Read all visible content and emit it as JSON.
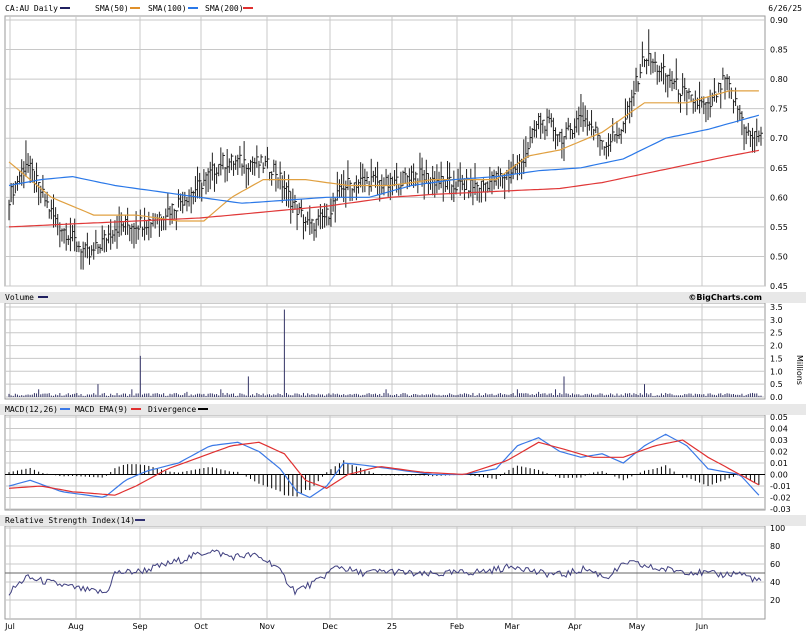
{
  "header": {
    "date": "6/26/25",
    "watermark": "©BigCharts.com"
  },
  "legends": {
    "price": [
      {
        "label": "CA:AU Daily",
        "color": "#202060"
      },
      {
        "label": "SMA(50)",
        "color": "#e0902a"
      },
      {
        "label": "SMA(100)",
        "color": "#e0902a"
      },
      {
        "label": "SMA(200)",
        "color": "#e03030"
      }
    ],
    "volume": [
      {
        "label": "Volume",
        "color": "#202060"
      }
    ],
    "macd": [
      {
        "label": "MACD(12,26)",
        "color": "#3a78e6"
      },
      {
        "label": "MACD EMA(9)",
        "color": "#e03030"
      },
      {
        "label": "Divergence",
        "color": "#000000"
      }
    ],
    "rsi": [
      {
        "label": "Relative Strength Index(14)",
        "color": "#303070"
      }
    ]
  },
  "volume_unit_label": "Millions",
  "colors": {
    "price_bar": "#222222",
    "sma50": "#e0a040",
    "sma100": "#2a78e8",
    "sma200": "#e03838",
    "grid": "#c8c8c8",
    "rsi": "#404080",
    "macd": "#3a78e6",
    "macd_signal": "#e03030",
    "volume": "#333366"
  },
  "chart_data": [
    {
      "type": "ohlc",
      "title": "CA:AU Daily",
      "x_labels": [
        "Jul",
        "Aug",
        "Sep",
        "Oct",
        "Nov",
        "Dec",
        "25",
        "Feb",
        "Mar",
        "Apr",
        "May",
        "Jun"
      ],
      "ylim": [
        0.45,
        0.9
      ],
      "y_ticks": [
        "0.90",
        "0.85",
        "0.80",
        "0.75",
        "0.70",
        "0.65",
        "0.60",
        "0.55",
        "0.50",
        "0.45"
      ],
      "close_anchors": [
        [
          0,
          0.6
        ],
        [
          8,
          0.66
        ],
        [
          22,
          0.56
        ],
        [
          38,
          0.5
        ],
        [
          50,
          0.55
        ],
        [
          66,
          0.56
        ],
        [
          76,
          0.58
        ],
        [
          90,
          0.62
        ],
        [
          100,
          0.66
        ],
        [
          115,
          0.66
        ],
        [
          125,
          0.65
        ],
        [
          134,
          0.59
        ],
        [
          142,
          0.55
        ],
        [
          150,
          0.57
        ],
        [
          158,
          0.62
        ],
        [
          170,
          0.63
        ],
        [
          180,
          0.62
        ],
        [
          190,
          0.64
        ],
        [
          200,
          0.63
        ],
        [
          210,
          0.62
        ],
        [
          222,
          0.62
        ],
        [
          236,
          0.64
        ],
        [
          242,
          0.66
        ],
        [
          250,
          0.73
        ],
        [
          256,
          0.72
        ],
        [
          262,
          0.7
        ],
        [
          270,
          0.74
        ],
        [
          282,
          0.69
        ],
        [
          290,
          0.72
        ],
        [
          300,
          0.84
        ],
        [
          306,
          0.82
        ],
        [
          312,
          0.8
        ],
        [
          320,
          0.77
        ],
        [
          330,
          0.75
        ],
        [
          338,
          0.8
        ],
        [
          344,
          0.75
        ],
        [
          350,
          0.7
        ],
        [
          355,
          0.71
        ]
      ],
      "sma50_anchors": [
        [
          0,
          0.66
        ],
        [
          20,
          0.6
        ],
        [
          40,
          0.57
        ],
        [
          60,
          0.57
        ],
        [
          80,
          0.56
        ],
        [
          92,
          0.56
        ],
        [
          105,
          0.6
        ],
        [
          120,
          0.63
        ],
        [
          140,
          0.63
        ],
        [
          160,
          0.62
        ],
        [
          180,
          0.62
        ],
        [
          200,
          0.63
        ],
        [
          215,
          0.63
        ],
        [
          230,
          0.63
        ],
        [
          245,
          0.67
        ],
        [
          260,
          0.68
        ],
        [
          280,
          0.71
        ],
        [
          300,
          0.76
        ],
        [
          320,
          0.76
        ],
        [
          340,
          0.78
        ],
        [
          355,
          0.78
        ]
      ],
      "sma100_anchors": [
        [
          0,
          0.62
        ],
        [
          15,
          0.63
        ],
        [
          30,
          0.635
        ],
        [
          50,
          0.62
        ],
        [
          70,
          0.61
        ],
        [
          90,
          0.6
        ],
        [
          110,
          0.59
        ],
        [
          130,
          0.595
        ],
        [
          150,
          0.6
        ],
        [
          170,
          0.6
        ],
        [
          190,
          0.62
        ],
        [
          210,
          0.63
        ],
        [
          230,
          0.635
        ],
        [
          250,
          0.645
        ],
        [
          270,
          0.65
        ],
        [
          290,
          0.665
        ],
        [
          310,
          0.7
        ],
        [
          330,
          0.715
        ],
        [
          355,
          0.74
        ]
      ],
      "sma200_anchors": [
        [
          0,
          0.55
        ],
        [
          30,
          0.555
        ],
        [
          60,
          0.56
        ],
        [
          90,
          0.565
        ],
        [
          120,
          0.575
        ],
        [
          150,
          0.585
        ],
        [
          180,
          0.6
        ],
        [
          200,
          0.605
        ],
        [
          230,
          0.61
        ],
        [
          260,
          0.615
        ],
        [
          280,
          0.625
        ],
        [
          300,
          0.64
        ],
        [
          320,
          0.655
        ],
        [
          340,
          0.67
        ],
        [
          355,
          0.68
        ]
      ]
    },
    {
      "type": "bar",
      "title": "Volume",
      "ylabel": "Millions",
      "ylim": [
        0,
        3.5
      ],
      "y_ticks": [
        "3.5",
        "3.0",
        "2.5",
        "2.0",
        "1.5",
        "1.0",
        "0.5",
        "0.0"
      ],
      "spikes": [
        [
          14,
          0.3
        ],
        [
          42,
          0.5
        ],
        [
          58,
          0.3
        ],
        [
          62,
          1.6
        ],
        [
          84,
          0.2
        ],
        [
          100,
          0.3
        ],
        [
          113,
          0.8
        ],
        [
          130,
          3.4
        ],
        [
          178,
          0.3
        ],
        [
          240,
          0.3
        ],
        [
          250,
          0.2
        ],
        [
          258,
          0.3
        ],
        [
          262,
          0.8
        ],
        [
          300,
          0.5
        ]
      ]
    },
    {
      "type": "line",
      "title": "MACD(12,26)",
      "ylim": [
        -0.03,
        0.05
      ],
      "y_ticks": [
        "0.05",
        "0.04",
        "0.03",
        "0.02",
        "0.01",
        "0.00",
        "-0.01",
        "-0.02",
        "-0.03"
      ],
      "macd_anchors": [
        [
          0,
          -0.01
        ],
        [
          10,
          -0.005
        ],
        [
          25,
          -0.015
        ],
        [
          45,
          -0.02
        ],
        [
          55,
          -0.005
        ],
        [
          65,
          0.003
        ],
        [
          80,
          0.01
        ],
        [
          95,
          0.025
        ],
        [
          108,
          0.028
        ],
        [
          118,
          0.02
        ],
        [
          128,
          0.005
        ],
        [
          136,
          -0.015
        ],
        [
          142,
          -0.02
        ],
        [
          150,
          -0.01
        ],
        [
          158,
          0.01
        ],
        [
          168,
          0.008
        ],
        [
          180,
          0.005
        ],
        [
          200,
          0.0
        ],
        [
          215,
          0.0
        ],
        [
          230,
          0.005
        ],
        [
          240,
          0.025
        ],
        [
          250,
          0.032
        ],
        [
          260,
          0.02
        ],
        [
          270,
          0.015
        ],
        [
          280,
          0.018
        ],
        [
          290,
          0.01
        ],
        [
          300,
          0.025
        ],
        [
          310,
          0.035
        ],
        [
          320,
          0.025
        ],
        [
          330,
          0.005
        ],
        [
          345,
          0.0
        ],
        [
          355,
          -0.02
        ]
      ],
      "signal_anchors": [
        [
          0,
          -0.012
        ],
        [
          15,
          -0.01
        ],
        [
          30,
          -0.015
        ],
        [
          50,
          -0.018
        ],
        [
          60,
          -0.01
        ],
        [
          75,
          0.005
        ],
        [
          90,
          0.015
        ],
        [
          105,
          0.025
        ],
        [
          118,
          0.028
        ],
        [
          130,
          0.018
        ],
        [
          140,
          -0.005
        ],
        [
          150,
          -0.012
        ],
        [
          160,
          0.0
        ],
        [
          175,
          0.007
        ],
        [
          195,
          0.002
        ],
        [
          215,
          0.0
        ],
        [
          235,
          0.012
        ],
        [
          250,
          0.028
        ],
        [
          262,
          0.022
        ],
        [
          275,
          0.015
        ],
        [
          290,
          0.015
        ],
        [
          305,
          0.025
        ],
        [
          318,
          0.03
        ],
        [
          330,
          0.015
        ],
        [
          345,
          0.0
        ],
        [
          355,
          -0.01
        ]
      ]
    },
    {
      "type": "line",
      "title": "Relative Strength Index(14)",
      "ylim": [
        0,
        100
      ],
      "y_ticks": [
        "100",
        "80",
        "60",
        "40",
        "20"
      ],
      "rsi_anchors": [
        [
          0,
          28
        ],
        [
          8,
          45
        ],
        [
          18,
          40
        ],
        [
          28,
          35
        ],
        [
          38,
          30
        ],
        [
          46,
          28
        ],
        [
          50,
          50
        ],
        [
          62,
          52
        ],
        [
          72,
          58
        ],
        [
          82,
          65
        ],
        [
          95,
          75
        ],
        [
          105,
          68
        ],
        [
          115,
          70
        ],
        [
          125,
          60
        ],
        [
          135,
          30
        ],
        [
          145,
          40
        ],
        [
          155,
          58
        ],
        [
          165,
          50
        ],
        [
          180,
          52
        ],
        [
          195,
          48
        ],
        [
          210,
          50
        ],
        [
          225,
          52
        ],
        [
          240,
          58
        ],
        [
          250,
          50
        ],
        [
          262,
          48
        ],
        [
          272,
          55
        ],
        [
          282,
          45
        ],
        [
          292,
          62
        ],
        [
          305,
          55
        ],
        [
          320,
          52
        ],
        [
          335,
          48
        ],
        [
          345,
          50
        ],
        [
          355,
          40
        ]
      ]
    }
  ]
}
